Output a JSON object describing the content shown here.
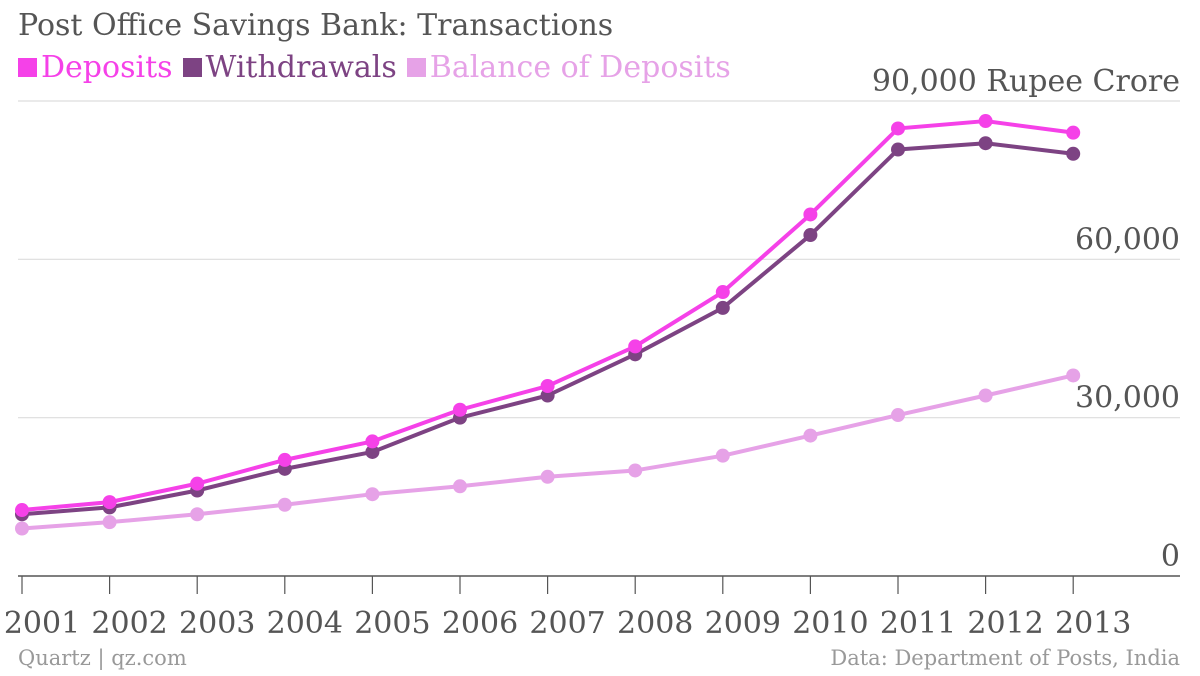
{
  "title": "Post Office Savings Bank: Transactions",
  "source_left": "Quartz | qz.com",
  "source_right": "Data: Department of Posts, India",
  "colors": {
    "deposits": "#f541e8",
    "withdrawals": "#7d4383",
    "balance": "#e6a2e7",
    "grid": "#dddddd",
    "baseline": "#555555",
    "text": "#555555"
  },
  "chart_data": {
    "type": "line",
    "title": "Post Office Savings Bank: Transactions",
    "xlabel": "",
    "ylabel": "",
    "x": [
      "2001",
      "2002",
      "2003",
      "2004",
      "2005",
      "2006",
      "2007",
      "2008",
      "2009",
      "2010",
      "2011",
      "2012",
      "2013"
    ],
    "ylim": [
      0,
      90000
    ],
    "yticks": [
      0,
      30000,
      60000,
      90000
    ],
    "ytick_labels": [
      "0",
      "30,000",
      "60,000",
      "90,000 Rupee Crore"
    ],
    "grid": true,
    "legend_position": "top-left",
    "series": [
      {
        "name": "Deposits",
        "color": "#f541e8",
        "values": [
          12500,
          14000,
          17500,
          22000,
          25500,
          31500,
          36000,
          43500,
          53800,
          68500,
          84800,
          86200,
          84000
        ]
      },
      {
        "name": "Withdrawals",
        "color": "#7d4383",
        "values": [
          11700,
          13000,
          16200,
          20300,
          23500,
          30000,
          34200,
          42000,
          50800,
          64600,
          80800,
          82000,
          80000
        ]
      },
      {
        "name": "Balance of Deposits",
        "color": "#e6a2e7",
        "values": [
          9000,
          10200,
          11700,
          13500,
          15500,
          17000,
          18800,
          20000,
          22800,
          26600,
          30500,
          34200,
          38000
        ]
      }
    ]
  }
}
